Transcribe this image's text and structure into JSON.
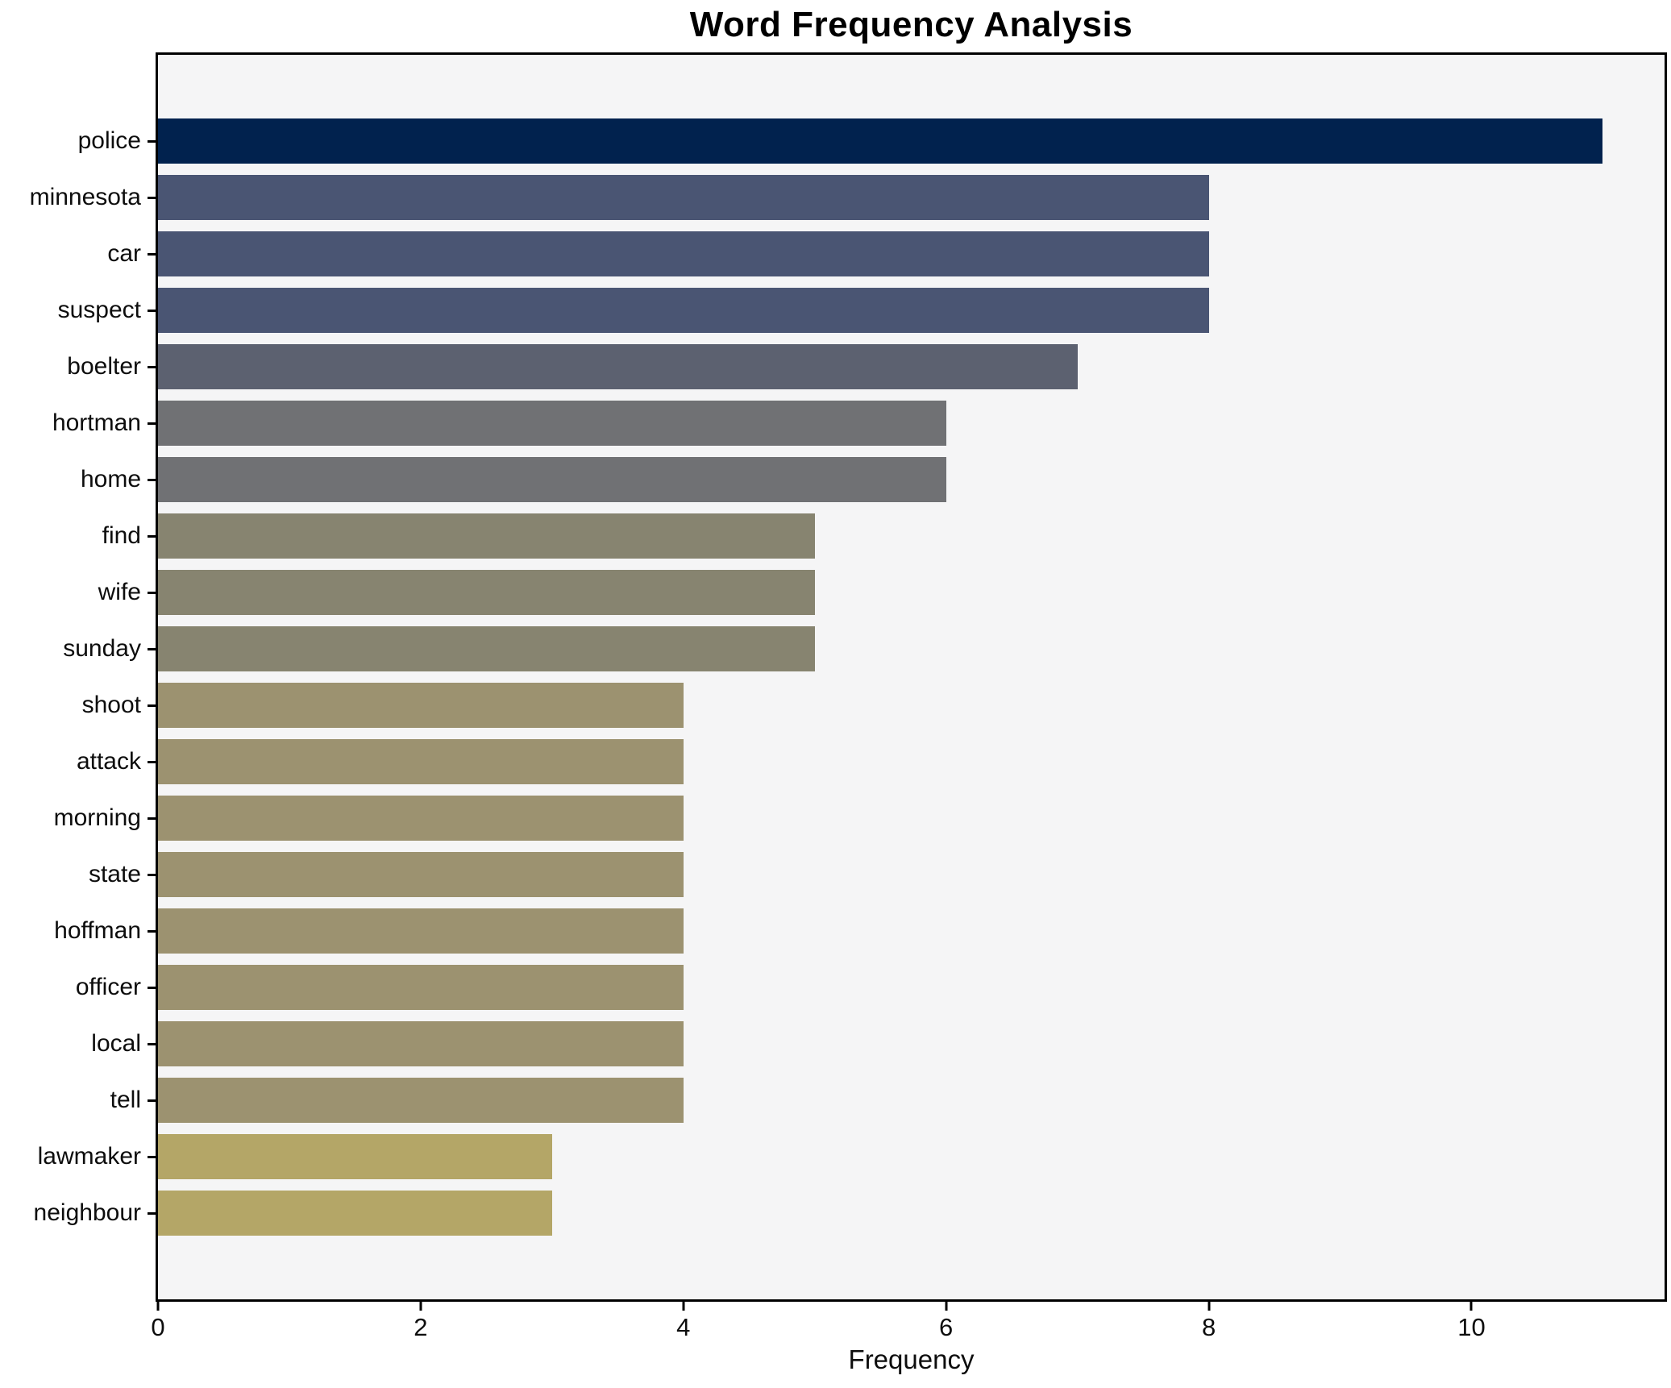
{
  "page": {
    "background": "#ffffff",
    "plot_background": "#f5f5f6",
    "axis_color": "#000000"
  },
  "chart_data": {
    "type": "bar",
    "orientation": "horizontal",
    "title": "Word Frequency Analysis",
    "xlabel": "Frequency",
    "ylabel": "",
    "categories": [
      "police",
      "minnesota",
      "car",
      "suspect",
      "boelter",
      "hortman",
      "home",
      "find",
      "wife",
      "sunday",
      "shoot",
      "attack",
      "morning",
      "state",
      "hoffman",
      "officer",
      "local",
      "tell",
      "lawmaker",
      "neighbour"
    ],
    "values": [
      11,
      8,
      8,
      8,
      7,
      6,
      6,
      5,
      5,
      5,
      4,
      4,
      4,
      4,
      4,
      4,
      4,
      4,
      3,
      3
    ],
    "bar_colors": [
      "#01224e",
      "#4a5573",
      "#4a5573",
      "#4a5573",
      "#5c6170",
      "#707174",
      "#707174",
      "#878470",
      "#878470",
      "#878470",
      "#9c9270",
      "#9c9270",
      "#9c9270",
      "#9c9270",
      "#9c9270",
      "#9c9270",
      "#9c9270",
      "#9c9270",
      "#b4a667",
      "#b4a667"
    ],
    "xlim": [
      0,
      11.47
    ],
    "xticks": [
      0,
      2,
      4,
      6,
      8,
      10
    ],
    "grid": false,
    "legend_position": "none"
  }
}
